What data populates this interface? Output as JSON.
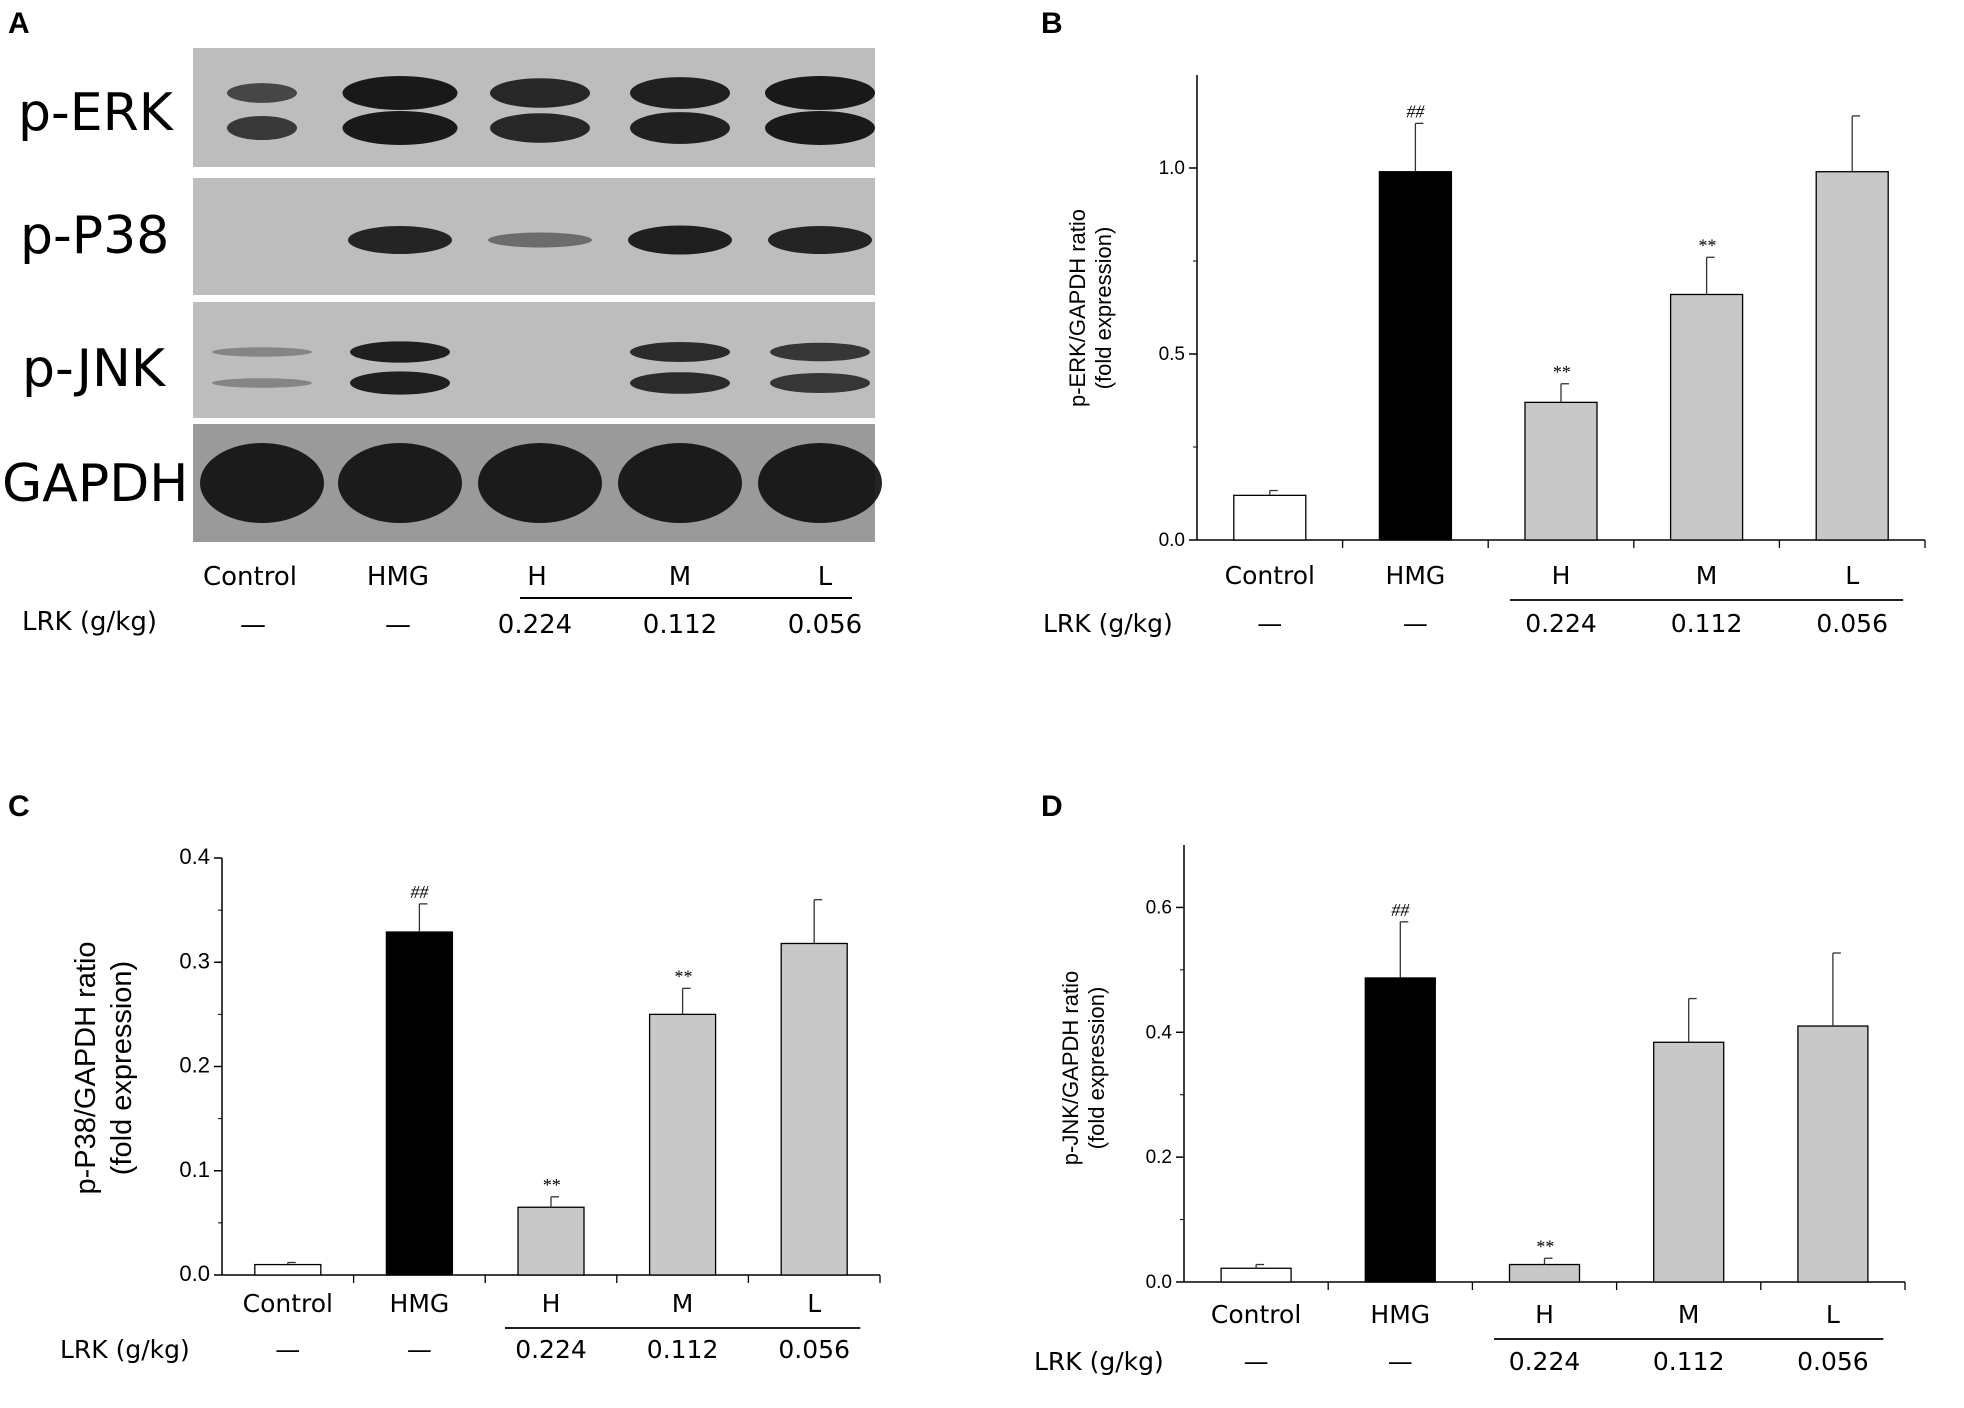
{
  "panels": [
    {
      "id": "A",
      "label": "A"
    },
    {
      "id": "B",
      "label": "B"
    },
    {
      "id": "C",
      "label": "C"
    },
    {
      "id": "D",
      "label": "D"
    }
  ],
  "blot": {
    "rows": [
      "p-ERK",
      "p-P38",
      "p-JNK",
      "GAPDH"
    ]
  },
  "group_labels": [
    "Control",
    "HMG",
    "H",
    "M",
    "L"
  ],
  "dose_label": "LRK (g/kg)",
  "doses": [
    "—",
    "—",
    "0.224",
    "0.112",
    "0.056"
  ],
  "colors": {
    "control": "#ffffff",
    "hmg": "#000000",
    "treated": "#c8c8c8",
    "blot_bg": "#bdbdbd",
    "band": "#101010"
  },
  "chart_data": [
    {
      "panel": "B",
      "type": "bar",
      "categories": [
        "Control",
        "HMG",
        "H",
        "M",
        "L"
      ],
      "values": [
        0.12,
        0.99,
        0.37,
        0.66,
        0.99
      ],
      "errors": [
        0.013,
        0.13,
        0.05,
        0.1,
        0.15
      ],
      "significance": [
        "",
        "##",
        "**",
        "**",
        ""
      ],
      "ylabel": [
        "p-ERK/GAPDH ratio",
        "(fold expression)"
      ],
      "ylim": [
        0,
        1.25
      ],
      "yticks": [
        0.0,
        0.5,
        1.0
      ],
      "ytick_labels": [
        "0.0",
        "0.5",
        "1.0"
      ]
    },
    {
      "panel": "C",
      "type": "bar",
      "categories": [
        "Control",
        "HMG",
        "H",
        "M",
        "L"
      ],
      "values": [
        0.01,
        0.329,
        0.065,
        0.25,
        0.318
      ],
      "errors": [
        0.002,
        0.027,
        0.01,
        0.025,
        0.042
      ],
      "significance": [
        "",
        "##",
        "**",
        "**",
        ""
      ],
      "ylabel": [
        "p-P38/GAPDH ratio",
        "(fold expression)"
      ],
      "ylim": [
        0,
        0.4
      ],
      "yticks": [
        0.0,
        0.1,
        0.2,
        0.3,
        0.4
      ],
      "ytick_labels": [
        "0.0",
        "0.1",
        "0.2",
        "0.3",
        "0.4"
      ]
    },
    {
      "panel": "D",
      "type": "bar",
      "categories": [
        "Control",
        "HMG",
        "H",
        "M",
        "L"
      ],
      "values": [
        0.022,
        0.487,
        0.028,
        0.384,
        0.41
      ],
      "errors": [
        0.006,
        0.09,
        0.01,
        0.07,
        0.117
      ],
      "significance": [
        "",
        "##",
        "**",
        "",
        ""
      ],
      "ylabel": [
        "p-JNK/GAPDH ratio",
        "(fold expression)"
      ],
      "ylim": [
        0,
        0.7
      ],
      "yticks": [
        0.0,
        0.2,
        0.4,
        0.6
      ],
      "ytick_labels": [
        "0.0",
        "0.2",
        "0.4",
        "0.6"
      ]
    }
  ]
}
